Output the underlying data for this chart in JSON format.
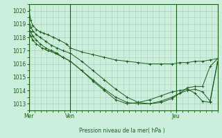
{
  "background_color": "#cceedd",
  "grid_color": "#aaccbb",
  "line_color": "#1a5c1a",
  "ylabel_text": "Pression niveau de la mer( hPa )",
  "ylim": [
    1012.5,
    1020.5
  ],
  "yticks": [
    1013,
    1014,
    1015,
    1016,
    1017,
    1018,
    1019,
    1020
  ],
  "day_labels": [
    "Mer",
    "Ven",
    "Jeu"
  ],
  "day_positions": [
    0,
    0.22,
    0.78
  ],
  "xlim": [
    0,
    1.0
  ],
  "series": [
    {
      "x": [
        0.0,
        0.01,
        0.02,
        0.04,
        0.06,
        0.08,
        0.1,
        0.13,
        0.16,
        0.2,
        0.22,
        0.28,
        0.34,
        0.4,
        0.46,
        0.52,
        0.58,
        0.64,
        0.7,
        0.76,
        0.8,
        0.84,
        0.88,
        0.92,
        0.96,
        1.0
      ],
      "y": [
        1020.1,
        1019.3,
        1018.9,
        1018.6,
        1018.4,
        1018.3,
        1018.2,
        1018.0,
        1017.8,
        1017.5,
        1017.2,
        1016.9,
        1016.7,
        1016.5,
        1016.3,
        1016.2,
        1016.1,
        1016.0,
        1016.0,
        1016.0,
        1016.1,
        1016.1,
        1016.2,
        1016.2,
        1016.3,
        1016.4
      ]
    },
    {
      "x": [
        0.0,
        0.01,
        0.02,
        0.04,
        0.06,
        0.09,
        0.12,
        0.15,
        0.18,
        0.22,
        0.28,
        0.34,
        0.4,
        0.46,
        0.52,
        0.58,
        0.64,
        0.7,
        0.76,
        0.8,
        0.84,
        0.88,
        0.92,
        0.96,
        1.0
      ],
      "y": [
        1019.3,
        1018.8,
        1018.5,
        1018.2,
        1018.0,
        1017.7,
        1017.4,
        1017.2,
        1017.0,
        1016.8,
        1016.2,
        1015.5,
        1014.8,
        1014.1,
        1013.5,
        1013.1,
        1013.0,
        1013.1,
        1013.4,
        1013.8,
        1014.2,
        1014.3,
        1014.3,
        1015.8,
        1016.4
      ]
    },
    {
      "x": [
        0.0,
        0.01,
        0.02,
        0.04,
        0.06,
        0.09,
        0.12,
        0.15,
        0.18,
        0.22,
        0.28,
        0.34,
        0.4,
        0.46,
        0.52,
        0.58,
        0.64,
        0.7,
        0.76,
        0.8,
        0.84,
        0.88,
        0.92,
        0.96,
        1.0
      ],
      "y": [
        1018.7,
        1018.4,
        1018.1,
        1017.8,
        1017.5,
        1017.2,
        1017.0,
        1016.8,
        1016.5,
        1016.2,
        1015.5,
        1014.8,
        1014.1,
        1013.5,
        1013.1,
        1013.0,
        1013.0,
        1013.2,
        1013.5,
        1013.8,
        1014.0,
        1014.1,
        1013.9,
        1013.2,
        1016.2
      ]
    },
    {
      "x": [
        0.0,
        0.01,
        0.02,
        0.04,
        0.07,
        0.1,
        0.14,
        0.18,
        0.22,
        0.28,
        0.34,
        0.4,
        0.46,
        0.52,
        0.58,
        0.64,
        0.7,
        0.76,
        0.8,
        0.84,
        0.88,
        0.92,
        0.96,
        1.0
      ],
      "y": [
        1018.4,
        1018.1,
        1017.8,
        1017.5,
        1017.2,
        1017.0,
        1016.8,
        1016.5,
        1016.2,
        1015.5,
        1014.7,
        1014.0,
        1013.3,
        1013.0,
        1013.1,
        1013.3,
        1013.6,
        1013.9,
        1014.0,
        1014.1,
        1013.8,
        1013.2,
        1013.1,
        1016.1
      ]
    }
  ]
}
